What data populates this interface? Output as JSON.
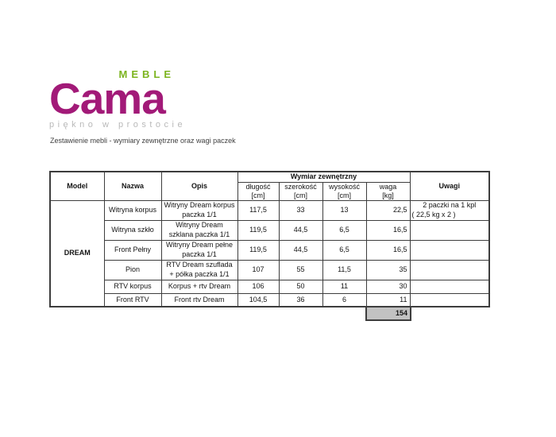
{
  "logo": {
    "brand": "Cama",
    "brand_color": "#a21a78",
    "sub_brand": "MEBLE",
    "sub_brand_color": "#7cb41e",
    "tagline": "piękno w prostocie",
    "tagline_color": "#b9b9b9"
  },
  "subtitle": "Zestawienie mebli - wymiary zewnętrzne oraz wagi paczek",
  "table": {
    "headers": {
      "model": "Model",
      "nazwa": "Nazwa",
      "opis": "Opis",
      "dim_group": "Wymiar zewnętrzny",
      "uwagi": "Uwagi",
      "dim_cols": [
        {
          "label": "długość",
          "unit": "[cm]"
        },
        {
          "label": "szerokość",
          "unit": "[cm]"
        },
        {
          "label": "wysokość",
          "unit": "[cm]"
        },
        {
          "label": "waga",
          "unit": "[kg]"
        }
      ]
    },
    "model": "DREAM",
    "rows": [
      {
        "nazwa": "Witryna korpus",
        "opis": "Witryny Dream korpus paczka 1/1",
        "dlugosc": "117,5",
        "szerokosc": "33",
        "wysokosc": "13",
        "waga": "22,5",
        "uwagi": [
          "2 paczki na 1 kpl",
          "( 22,5 kg x 2 )"
        ]
      },
      {
        "nazwa": "Witryna szkło",
        "opis": "Witryny Dream szklana paczka 1/1",
        "dlugosc": "119,5",
        "szerokosc": "44,5",
        "wysokosc": "6,5",
        "waga": "16,5",
        "uwagi": []
      },
      {
        "nazwa": "Front Pełny",
        "opis": "Witryny Dream pełne paczka 1/1",
        "dlugosc": "119,5",
        "szerokosc": "44,5",
        "wysokosc": "6,5",
        "waga": "16,5",
        "uwagi": []
      },
      {
        "nazwa": "Pion",
        "opis": "RTV Dream szuflada + półka paczka 1/1",
        "dlugosc": "107",
        "szerokosc": "55",
        "wysokosc": "11,5",
        "waga": "35",
        "uwagi": []
      },
      {
        "nazwa": "RTV korpus",
        "opis": "Korpus + rtv Dream",
        "dlugosc": "106",
        "szerokosc": "50",
        "wysokosc": "11",
        "waga": "30",
        "uwagi": []
      },
      {
        "nazwa": "Front RTV",
        "opis": "Front rtv Dream",
        "dlugosc": "104,5",
        "szerokosc": "36",
        "wysokosc": "6",
        "waga": "11",
        "uwagi": []
      }
    ],
    "total_waga": "154"
  }
}
